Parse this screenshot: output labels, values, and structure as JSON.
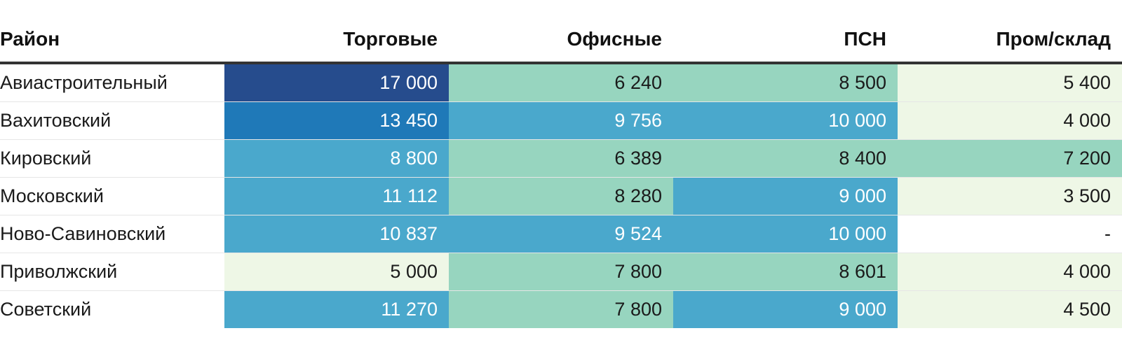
{
  "chart_data": {
    "type": "heatmap",
    "columns": [
      "Район",
      "Торговые",
      "Офисные",
      "ПСН",
      "Пром/склад"
    ],
    "rows": [
      {
        "name": "Авиастроительный",
        "values": [
          17000,
          6240,
          8500,
          5400
        ],
        "labels": [
          "17 000",
          "6 240",
          "8 500",
          "5 400"
        ]
      },
      {
        "name": "Вахитовский",
        "values": [
          13450,
          9756,
          10000,
          4000
        ],
        "labels": [
          "13 450",
          "9 756",
          "10 000",
          "4 000"
        ]
      },
      {
        "name": "Кировский",
        "values": [
          8800,
          6389,
          8400,
          7200
        ],
        "labels": [
          "8 800",
          "6 389",
          "8 400",
          "7 200"
        ]
      },
      {
        "name": "Московский",
        "values": [
          11112,
          8280,
          9000,
          3500
        ],
        "labels": [
          "11 112",
          "8 280",
          "9 000",
          "3 500"
        ]
      },
      {
        "name": "Ново-Савиновский",
        "values": [
          10837,
          9524,
          10000,
          null
        ],
        "labels": [
          "10 837",
          "9 524",
          "10 000",
          "-"
        ]
      },
      {
        "name": "Приволжский",
        "values": [
          5000,
          7800,
          8601,
          4000
        ],
        "labels": [
          "5 000",
          "7 800",
          "8 601",
          "4 000"
        ]
      },
      {
        "name": "Советский",
        "values": [
          11270,
          7800,
          9000,
          4500
        ],
        "labels": [
          "11 270",
          "7 800",
          "9 000",
          "4 500"
        ]
      }
    ],
    "color_scale": [
      {
        "max": 6000,
        "color": "#eef7e6",
        "text": "#1a1a1a"
      },
      {
        "max": 8750,
        "color": "#97d5bf",
        "text": "#1a1a1a"
      },
      {
        "max": 12000,
        "color": "#4aa8cc",
        "text": "#ffffff"
      },
      {
        "max": 15000,
        "color": "#1f79b8",
        "text": "#ffffff"
      },
      {
        "max": 999999,
        "color": "#264c8d",
        "text": "#ffffff"
      }
    ],
    "missing_color": "#ffffff"
  }
}
